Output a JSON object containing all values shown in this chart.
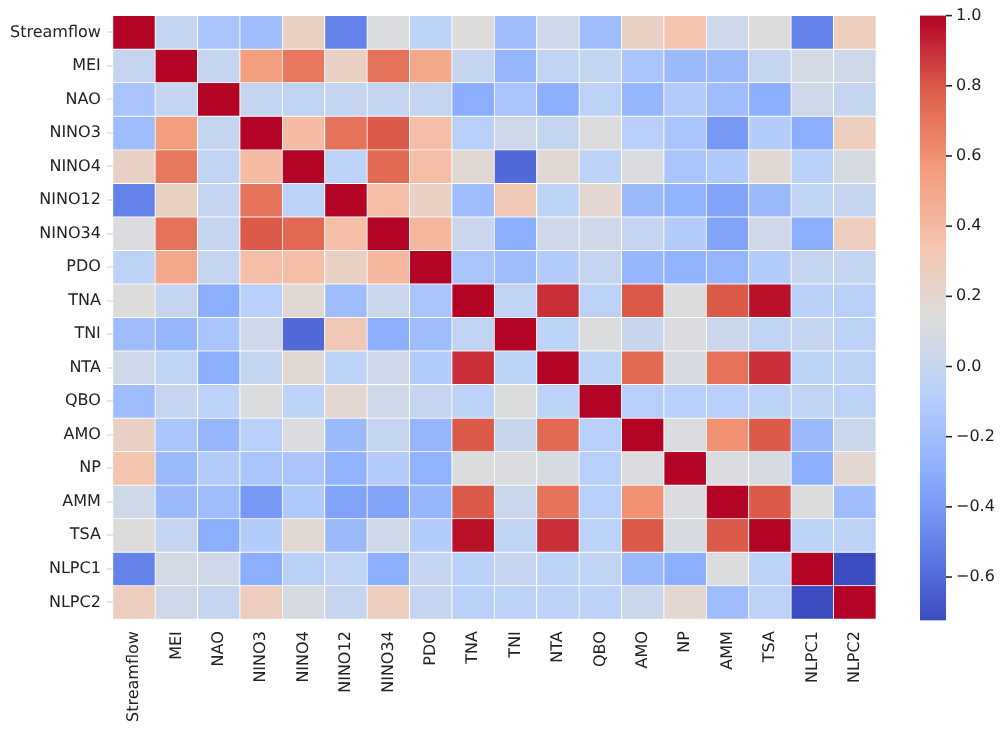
{
  "chart_data": {
    "type": "heatmap",
    "categories": [
      "Streamflow",
      "MEI",
      "NAO",
      "NINO3",
      "NINO4",
      "NINO12",
      "NINO34",
      "PDO",
      "TNA",
      "TNI",
      "NTA",
      "QBO",
      "AMO",
      "NP",
      "AMM",
      "TSA",
      "NLPC1",
      "NLPC2"
    ],
    "y_categories": [
      "Streamflow",
      "MEI",
      "NAO",
      "NINO3",
      "NINO4",
      "NINO12",
      "NINO34",
      "PDO",
      "TNA",
      "TNI",
      "NTA",
      "QBO",
      "AMO",
      "NP",
      "AMM",
      "TSA",
      "NLPC1",
      "NLPC2"
    ],
    "cells": [
      [
        1,
        0.0,
        -0.15,
        -0.2,
        0.25,
        -0.5,
        0.12,
        -0.05,
        0.15,
        -0.2,
        0.05,
        -0.2,
        0.25,
        0.35,
        0.05,
        0.15,
        -0.5,
        0.28
      ],
      [
        0.0,
        1,
        0.0,
        0.55,
        0.7,
        0.25,
        0.72,
        0.5,
        0.0,
        -0.25,
        -0.02,
        0.0,
        -0.15,
        -0.22,
        -0.22,
        0.0,
        0.08,
        0.05
      ],
      [
        -0.15,
        0.0,
        1,
        0.0,
        -0.02,
        0.0,
        0.0,
        0.0,
        -0.3,
        -0.15,
        -0.3,
        -0.05,
        -0.25,
        -0.1,
        -0.2,
        -0.3,
        0.05,
        0.0
      ],
      [
        -0.2,
        0.55,
        0.0,
        1,
        0.4,
        0.72,
        0.8,
        0.38,
        -0.08,
        0.05,
        0.0,
        0.13,
        -0.08,
        -0.15,
        -0.4,
        -0.1,
        -0.3,
        0.28
      ],
      [
        0.25,
        0.7,
        -0.02,
        0.4,
        1,
        -0.05,
        0.75,
        0.38,
        0.18,
        -0.6,
        0.18,
        -0.05,
        0.12,
        -0.15,
        -0.12,
        0.18,
        -0.07,
        0.1
      ],
      [
        -0.5,
        0.25,
        0.0,
        0.72,
        -0.05,
        1,
        0.38,
        0.25,
        -0.2,
        0.32,
        -0.05,
        0.2,
        -0.22,
        -0.27,
        -0.35,
        -0.22,
        -0.02,
        0.0
      ],
      [
        0.12,
        0.72,
        0.0,
        0.8,
        0.75,
        0.38,
        1,
        0.42,
        0.03,
        -0.3,
        0.05,
        0.05,
        0.0,
        -0.1,
        -0.35,
        0.05,
        -0.3,
        0.28
      ],
      [
        -0.05,
        0.5,
        0.0,
        0.38,
        0.38,
        0.25,
        0.42,
        1,
        -0.15,
        -0.2,
        -0.1,
        0.0,
        -0.25,
        -0.27,
        -0.25,
        -0.1,
        0.0,
        0.0
      ],
      [
        0.15,
        0.0,
        -0.3,
        -0.08,
        0.18,
        -0.2,
        0.03,
        -0.15,
        1,
        -0.03,
        0.9,
        -0.05,
        0.8,
        0.13,
        0.8,
        0.97,
        -0.07,
        -0.07
      ],
      [
        -0.2,
        -0.25,
        -0.15,
        0.05,
        -0.6,
        0.32,
        -0.3,
        -0.2,
        -0.03,
        1,
        -0.05,
        0.13,
        0.02,
        0.12,
        0.03,
        -0.03,
        0.0,
        -0.05
      ],
      [
        0.05,
        -0.02,
        -0.3,
        0.0,
        0.18,
        -0.05,
        0.05,
        -0.1,
        0.9,
        -0.05,
        1,
        -0.05,
        0.75,
        0.1,
        0.72,
        0.9,
        -0.05,
        -0.05
      ],
      [
        -0.2,
        0.0,
        -0.05,
        0.13,
        -0.05,
        0.2,
        0.05,
        0.0,
        -0.05,
        0.13,
        -0.05,
        1,
        -0.08,
        -0.08,
        -0.08,
        -0.05,
        -0.02,
        -0.05
      ],
      [
        0.25,
        -0.15,
        -0.25,
        -0.08,
        0.12,
        -0.22,
        0.0,
        -0.25,
        0.8,
        0.02,
        0.75,
        -0.08,
        1,
        0.12,
        0.6,
        0.8,
        -0.22,
        0.03
      ],
      [
        0.35,
        -0.22,
        -0.1,
        -0.15,
        -0.15,
        -0.27,
        -0.1,
        -0.27,
        0.13,
        0.12,
        0.1,
        -0.08,
        0.12,
        1,
        0.12,
        0.1,
        -0.3,
        0.2
      ],
      [
        0.05,
        -0.22,
        -0.2,
        -0.4,
        -0.12,
        -0.35,
        -0.35,
        -0.25,
        0.8,
        0.03,
        0.72,
        -0.08,
        0.6,
        0.12,
        1,
        0.8,
        0.13,
        -0.2
      ],
      [
        0.15,
        0.0,
        -0.3,
        -0.1,
        0.18,
        -0.22,
        0.05,
        -0.1,
        0.97,
        -0.03,
        0.9,
        -0.05,
        0.8,
        0.1,
        0.8,
        1,
        -0.05,
        -0.05
      ],
      [
        -0.5,
        0.08,
        0.05,
        -0.3,
        -0.07,
        -0.02,
        -0.3,
        0.0,
        -0.07,
        0.0,
        -0.05,
        -0.02,
        -0.22,
        -0.3,
        0.13,
        -0.05,
        1,
        -0.72
      ],
      [
        0.28,
        0.05,
        0.0,
        0.28,
        0.1,
        0.0,
        0.28,
        0.0,
        -0.07,
        -0.05,
        -0.05,
        -0.05,
        0.03,
        0.2,
        -0.2,
        -0.05,
        -0.72,
        1
      ]
    ],
    "clim": [
      -0.72,
      1.0
    ],
    "cticks": [
      {
        "value": -0.6,
        "label": "−0.6"
      },
      {
        "value": -0.4,
        "label": "−0.4"
      },
      {
        "value": -0.2,
        "label": "−0.2"
      },
      {
        "value": 0.0,
        "label": "0.0"
      },
      {
        "value": 0.2,
        "label": "0.2"
      },
      {
        "value": 0.4,
        "label": "0.4"
      },
      {
        "value": 0.6,
        "label": "0.6"
      },
      {
        "value": 0.8,
        "label": "0.8"
      },
      {
        "value": 1.0,
        "label": "1.0"
      }
    ]
  }
}
